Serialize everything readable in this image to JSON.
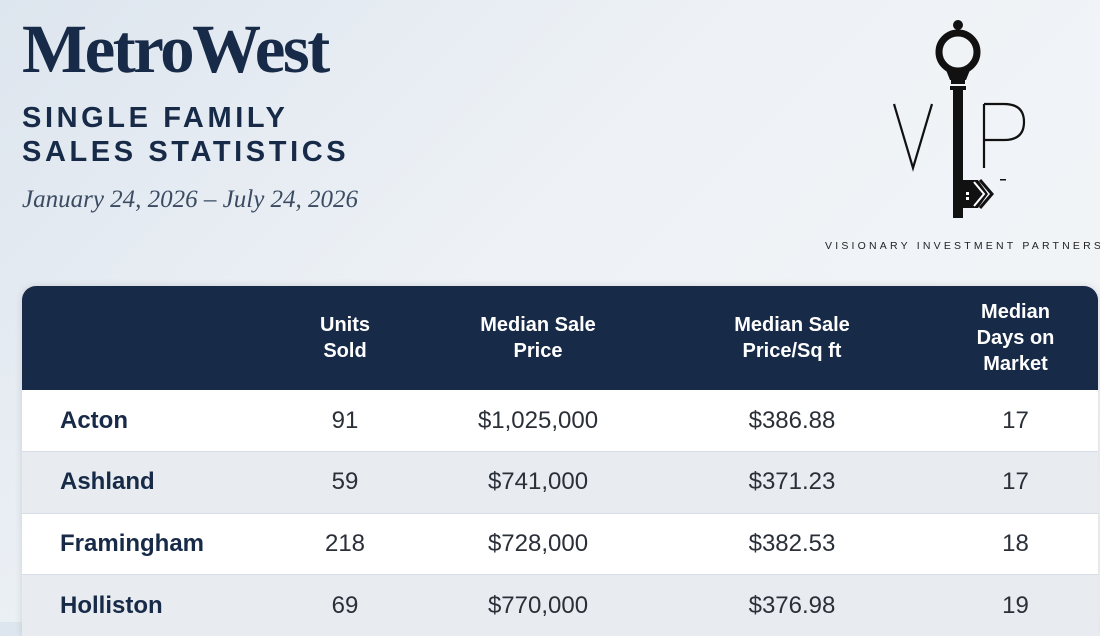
{
  "header": {
    "title": "MetroWest",
    "subtitle_lines": [
      "SINGLE FAMILY",
      "SALES STATISTICS"
    ],
    "date_range": "January 24, 2026 – July 24, 2026"
  },
  "logo": {
    "icon": "vip-key-icon",
    "tagline": "VISIONARY INVESTMENT PARTNERS"
  },
  "table": {
    "headers": [
      {
        "lines": []
      },
      {
        "lines": [
          "Units",
          "Sold"
        ]
      },
      {
        "lines": [
          "Median Sale",
          "Price"
        ]
      },
      {
        "lines": [
          "Median Sale",
          "Price/Sq ft"
        ]
      },
      {
        "lines": [
          "Median",
          "Days on",
          "Market"
        ]
      }
    ],
    "rows": [
      {
        "town": "Acton",
        "units_sold": "91",
        "median_price": "$1,025,000",
        "price_sqft": "$386.88",
        "days_on_market": "17"
      },
      {
        "town": "Ashland",
        "units_sold": "59",
        "median_price": "$741,000",
        "price_sqft": "$371.23",
        "days_on_market": "17"
      },
      {
        "town": "Framingham",
        "units_sold": "218",
        "median_price": "$728,000",
        "price_sqft": "$382.53",
        "days_on_market": "18"
      },
      {
        "town": "Holliston",
        "units_sold": "69",
        "median_price": "$770,000",
        "price_sqft": "$376.98",
        "days_on_market": "19"
      }
    ]
  },
  "colors": {
    "navy": "#172a47",
    "row_alt": "#e8ecf1",
    "row_white": "#ffffff"
  }
}
